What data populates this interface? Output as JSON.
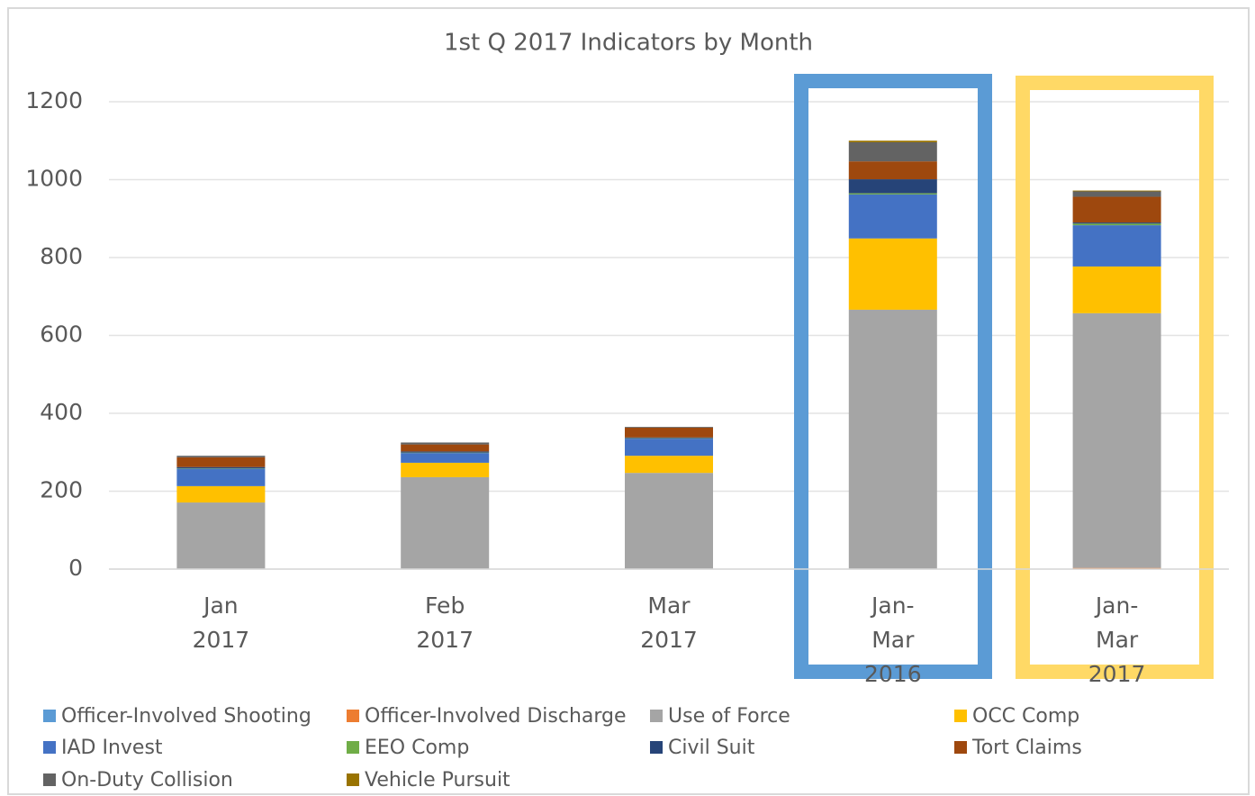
{
  "chart_data": {
    "type": "stacked_bar",
    "title": "1st Q 2017 Indicators by Month",
    "categories": [
      "Jan 2017",
      "Feb 2017",
      "Mar 2017",
      "Jan-Mar 2016",
      "Jan-Mar 2017"
    ],
    "series": [
      {
        "name": "Officer-Involved Shooting",
        "color": "#5b9bd5",
        "values": [
          0,
          0,
          0,
          0,
          0
        ]
      },
      {
        "name": "Officer-Involved Discharge",
        "color": "#ed7d31",
        "values": [
          1,
          1,
          1,
          1,
          3
        ]
      },
      {
        "name": "Use of Force",
        "color": "#a5a5a5",
        "values": [
          170,
          235,
          246,
          665,
          654
        ]
      },
      {
        "name": "OCC Comp",
        "color": "#ffc000",
        "values": [
          42,
          37,
          44,
          183,
          120
        ]
      },
      {
        "name": "IAD Invest",
        "color": "#4472c4",
        "values": [
          45,
          25,
          44,
          113,
          106
        ]
      },
      {
        "name": "EEO Comp",
        "color": "#70ad47",
        "values": [
          1,
          1,
          1,
          3,
          4
        ]
      },
      {
        "name": "Civil Suit",
        "color": "#264478",
        "values": [
          3,
          3,
          2,
          36,
          3
        ]
      },
      {
        "name": "Tort Claims",
        "color": "#9e480e",
        "values": [
          25,
          18,
          25,
          46,
          66
        ]
      },
      {
        "name": "On-Duty Collision",
        "color": "#636363",
        "values": [
          4,
          5,
          2,
          49,
          14
        ]
      },
      {
        "name": "Vehicle Pursuit",
        "color": "#997300",
        "values": [
          0,
          0,
          0,
          4,
          2
        ]
      }
    ],
    "ylim": [
      0,
      1200
    ],
    "yticks": [
      0,
      200,
      400,
      600,
      800,
      1000,
      1200
    ],
    "grid": true,
    "legend": "bottom"
  }
}
